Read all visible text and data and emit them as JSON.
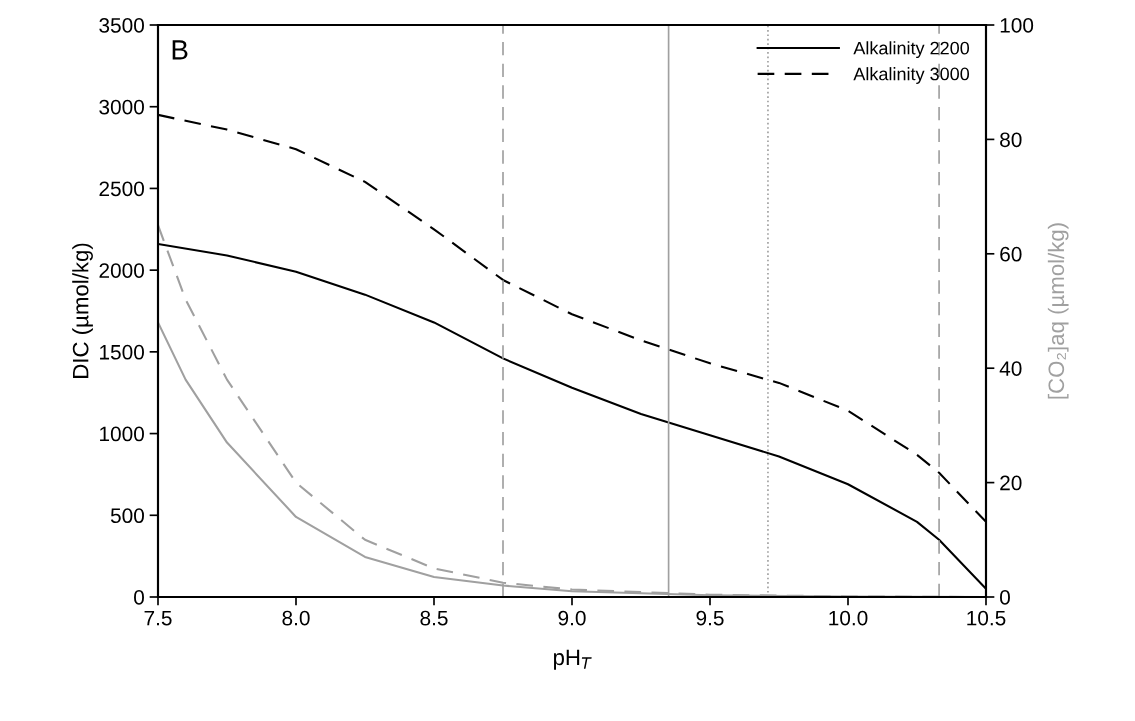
{
  "chart_data": {
    "type": "line",
    "xlabel": "pH$_{T}$",
    "ylabel": "DIC (µmol/kg)",
    "y2label": "[CO₂]aq (µmol/kg)",
    "annotations": [
      "B"
    ],
    "xlim": [
      7.5,
      10.5
    ],
    "xticks": [
      {
        "value": 7.5,
        "label": "7.5"
      },
      {
        "value": 8.0,
        "label": "8.0"
      },
      {
        "value": 8.5,
        "label": "8.5"
      },
      {
        "value": 9.0,
        "label": "9.0"
      },
      {
        "value": 9.5,
        "label": "9.5"
      },
      {
        "value": 10.0,
        "label": "10.0"
      },
      {
        "value": 10.5,
        "label": "10.5"
      }
    ],
    "ylim": [
      0,
      3500
    ],
    "yticks": [
      0,
      500,
      1000,
      1500,
      2000,
      2500,
      3000,
      3500
    ],
    "y2lim": [
      0,
      100
    ],
    "y2ticks": [
      0,
      20,
      40,
      60,
      80,
      100
    ],
    "legend": "top right",
    "grid": false,
    "series": [
      {
        "name": "Alkalinity 2200",
        "color": "#000000",
        "line_style": "solid",
        "x": [
          7.5,
          7.75,
          8.0,
          8.25,
          8.5,
          8.75,
          9.0,
          9.25,
          9.5,
          9.75,
          10.0,
          10.25,
          10.33,
          10.5
        ],
        "values": [
          2160,
          2090,
          1990,
          1850,
          1680,
          1460,
          1280,
          1120,
          990,
          860,
          690,
          460,
          350,
          50
        ]
      },
      {
        "name": "Alkalinity 3000",
        "color": "#000000",
        "line_style": "dashed",
        "x": [
          7.5,
          7.75,
          8.0,
          8.25,
          8.5,
          8.75,
          9.0,
          9.25,
          9.5,
          9.75,
          10.0,
          10.25,
          10.33,
          10.5
        ],
        "values": [
          2950,
          2860,
          2740,
          2540,
          2250,
          1940,
          1730,
          1570,
          1430,
          1310,
          1140,
          870,
          760,
          460
        ]
      },
      {
        "color": "#a0a0a0",
        "line_style": "solid",
        "axis": "y2",
        "x": [
          7.5,
          7.6,
          7.75,
          8.0,
          8.25,
          8.5,
          8.75,
          9.0,
          9.5,
          10.0,
          10.5
        ],
        "values": [
          48,
          38,
          27,
          14,
          7,
          3.5,
          2,
          1,
          0.3,
          0.1,
          0
        ]
      },
      {
        "color": "#a0a0a0",
        "line_style": "dashed",
        "axis": "y2",
        "x": [
          7.5,
          7.6,
          7.75,
          8.0,
          8.25,
          8.5,
          8.75,
          9.0,
          9.5,
          10.0,
          10.5
        ],
        "values": [
          65,
          52,
          38,
          20,
          10,
          5,
          2.5,
          1.3,
          0.4,
          0.1,
          0
        ]
      }
    ],
    "ref_lines": [
      {
        "axis": "x",
        "value": 8.75,
        "color": "#a0a0a0",
        "line_style": "dashed"
      },
      {
        "axis": "x",
        "value": 9.35,
        "color": "#a0a0a0",
        "line_style": "solid"
      },
      {
        "axis": "x",
        "value": 9.71,
        "color": "#a0a0a0",
        "line_style": "dotted"
      },
      {
        "axis": "x",
        "value": 10.33,
        "color": "#a0a0a0",
        "line_style": "dashed"
      }
    ]
  }
}
